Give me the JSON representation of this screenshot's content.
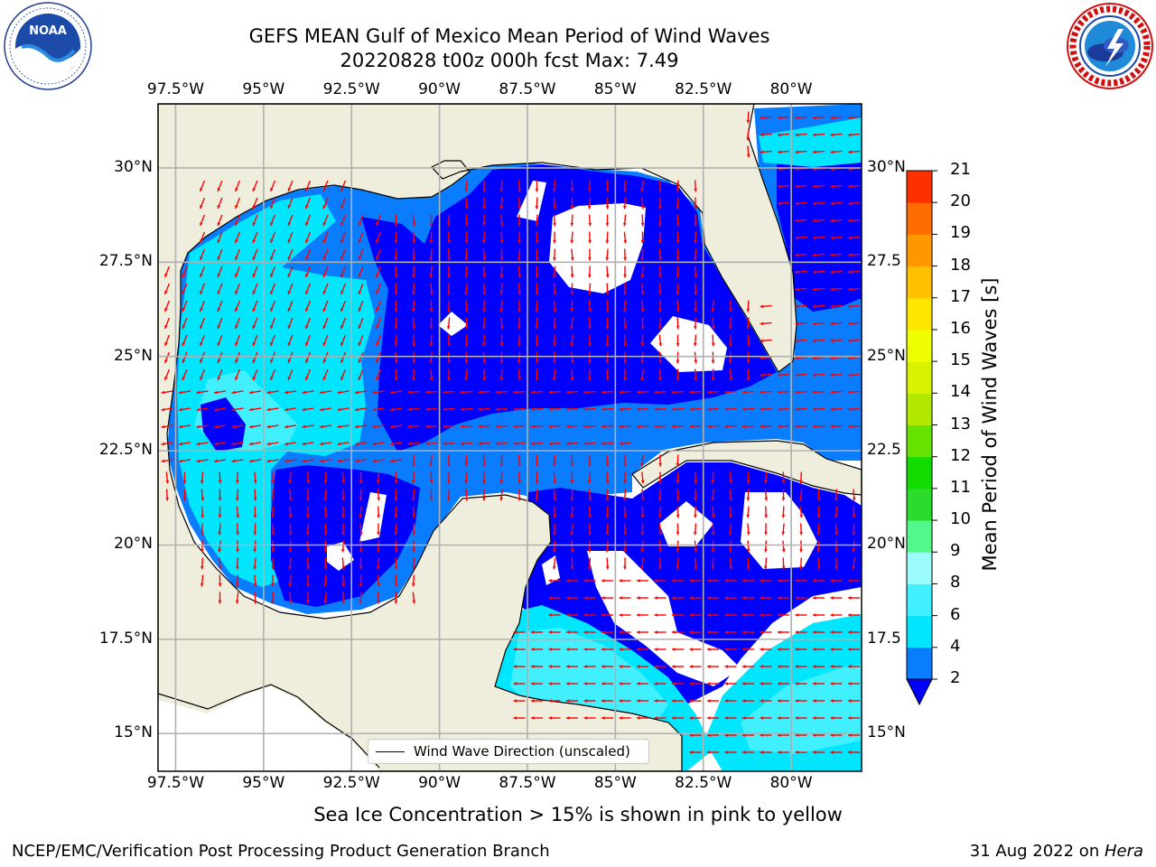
{
  "title": {
    "line1": "GEFS MEAN Gulf of Mexico Mean Period of Wind Waves",
    "line2": "20220828 t00z 000h fcst   Max: 7.49"
  },
  "logos": {
    "left": {
      "name": "NOAA",
      "ring_text": "NATIONAL OCEANIC AND ATMOSPHERIC ADMINISTRATION · U.S. DEPARTMENT OF COMMERCE"
    },
    "right": {
      "name": "NATIONAL WEATHER SERVICE"
    }
  },
  "map": {
    "lon_labels": [
      "97.5°W",
      "95°W",
      "92.5°W",
      "90°W",
      "87.5°W",
      "85°W",
      "82.5°W",
      "80°W"
    ],
    "lon_values": [
      -97.5,
      -95,
      -92.5,
      -90,
      -87.5,
      -85,
      -82.5,
      -80
    ],
    "lat_labels": [
      "30°N",
      "27.5°N",
      "25°N",
      "22.5°N",
      "20°N",
      "17.5°N",
      "15°N"
    ],
    "lat_values": [
      30,
      27.5,
      25,
      22.5,
      20,
      17.5,
      15
    ],
    "right_lat_labels": [
      "30°N",
      "27.5",
      "25°N",
      "22.5",
      "20°N",
      "17.5",
      "15°N"
    ],
    "extent": {
      "lon_min": -98,
      "lon_max": -78,
      "lat_min": 14,
      "lat_max": 31.7
    },
    "land_color": "#efeedd",
    "ocean_missing_color": "#ffffff",
    "vector_color": "#ff0000",
    "legend_label": "Wind Wave Direction (unscaled)"
  },
  "colorbar": {
    "title": "Mean Period of Wind Waves [s]",
    "levels": [
      2,
      4,
      6,
      8,
      9,
      10,
      11,
      12,
      13,
      14,
      15,
      16,
      17,
      18,
      19,
      20,
      21
    ],
    "labels": [
      "2",
      "4",
      "6",
      "8",
      "9",
      "10",
      "11",
      "12",
      "13",
      "14",
      "15",
      "16",
      "17",
      "18",
      "19",
      "20",
      "21"
    ],
    "colors": [
      "#0a7dff",
      "#00e6ff",
      "#40f0ff",
      "#9cfcfb",
      "#54f88a",
      "#2ddb2d",
      "#10dc00",
      "#66e200",
      "#b2e800",
      "#d9f200",
      "#f0ff00",
      "#ffe600",
      "#ffc000",
      "#ff9800",
      "#ff6c00",
      "#ff3000"
    ],
    "under_color": "#0000ff"
  },
  "note": "Sea Ice Concentration > 15% is shown in pink to yellow",
  "footer": {
    "left": "NCEP/EMC/Verification Post Processing Product Generation Branch",
    "date": "31 Aug 2022 on ",
    "machine": "Hera"
  }
}
